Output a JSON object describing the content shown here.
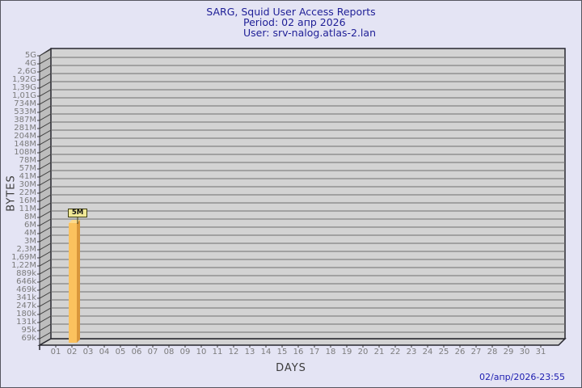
{
  "header": {
    "title": "SARG, Squid User Access Reports",
    "period": "Period: 02 апр 2026",
    "user": "User: srv-nalog.atlas-2.lan"
  },
  "y_axis": {
    "title": "BYTES",
    "labels": [
      "5G",
      "4G",
      "2,6G",
      "1,92G",
      "1,39G",
      "1,01G",
      "734M",
      "533M",
      "387M",
      "281M",
      "204M",
      "148M",
      "108M",
      "78M",
      "57M",
      "41M",
      "30M",
      "22M",
      "16M",
      "11M",
      "8M",
      "6M",
      "4M",
      "3M",
      "2,3M",
      "1,69M",
      "1,22M",
      "889k",
      "646k",
      "469k",
      "341k",
      "247k",
      "180k",
      "131k",
      "95k",
      "69k"
    ]
  },
  "x_axis": {
    "title": "DAYS",
    "labels": [
      "01",
      "02",
      "03",
      "04",
      "05",
      "06",
      "07",
      "08",
      "09",
      "10",
      "11",
      "12",
      "13",
      "14",
      "15",
      "16",
      "17",
      "18",
      "19",
      "20",
      "21",
      "22",
      "23",
      "24",
      "25",
      "26",
      "27",
      "28",
      "29",
      "30",
      "31"
    ]
  },
  "bars": [
    {
      "day": "02",
      "value_label": "5M",
      "bytes": 5000000
    }
  ],
  "footer": {
    "timestamp": "02/апр/2026-23:55"
  },
  "colors": {
    "page_bg": "#e4e4f4",
    "page_border": "#55555f",
    "title_text": "#1e1e96",
    "timestamp_text": "#1c1cb0",
    "axis_title_text": "#3c3c3c",
    "tick_text": "#7b7b7b",
    "plot_face": "#d3d3d3",
    "gridline": "#6f6f6f",
    "wall_face": "#bdbdbd",
    "plot_border": "#26262e",
    "bar_face": "#fbc25e",
    "bar_side": "#d9973b",
    "bar_top": "#fdda8c",
    "flag_bg": "#f0e896",
    "flag_border": "#3e3e10",
    "flag_text": "#111111"
  },
  "chart_data": {
    "type": "bar",
    "title": "SARG, Squid User Access Reports",
    "subtitle": [
      "Period: 02 апр 2026",
      "User: srv-nalog.atlas-2.lan"
    ],
    "xlabel": "DAYS",
    "ylabel": "BYTES",
    "categories": [
      "01",
      "02",
      "03",
      "04",
      "05",
      "06",
      "07",
      "08",
      "09",
      "10",
      "11",
      "12",
      "13",
      "14",
      "15",
      "16",
      "17",
      "18",
      "19",
      "20",
      "21",
      "22",
      "23",
      "24",
      "25",
      "26",
      "27",
      "28",
      "29",
      "30",
      "31"
    ],
    "values": [
      0,
      5000000,
      0,
      0,
      0,
      0,
      0,
      0,
      0,
      0,
      0,
      0,
      0,
      0,
      0,
      0,
      0,
      0,
      0,
      0,
      0,
      0,
      0,
      0,
      0,
      0,
      0,
      0,
      0,
      0,
      0
    ],
    "value_labels": [
      "",
      "5M",
      "",
      "",
      "",
      "",
      "",
      "",
      "",
      "",
      "",
      "",
      "",
      "",
      "",
      "",
      "",
      "",
      "",
      "",
      "",
      "",
      "",
      "",
      "",
      "",
      "",
      "",
      "",
      "",
      ""
    ],
    "y_scale": "log",
    "y_axis_top_value": 5000000000,
    "y_axis_bottom_value": 69000,
    "y_tick_labels": [
      "5G",
      "4G",
      "2,6G",
      "1,92G",
      "1,39G",
      "1,01G",
      "734M",
      "533M",
      "387M",
      "281M",
      "204M",
      "148M",
      "108M",
      "78M",
      "57M",
      "41M",
      "30M",
      "22M",
      "16M",
      "11M",
      "8M",
      "6M",
      "4M",
      "3M",
      "2,3M",
      "1,69M",
      "1,22M",
      "889k",
      "646k",
      "469k",
      "341k",
      "247k",
      "180k",
      "131k",
      "95k",
      "69k"
    ],
    "grid": true,
    "legend": false,
    "annotations": [
      "02/апр/2026-23:55"
    ]
  }
}
